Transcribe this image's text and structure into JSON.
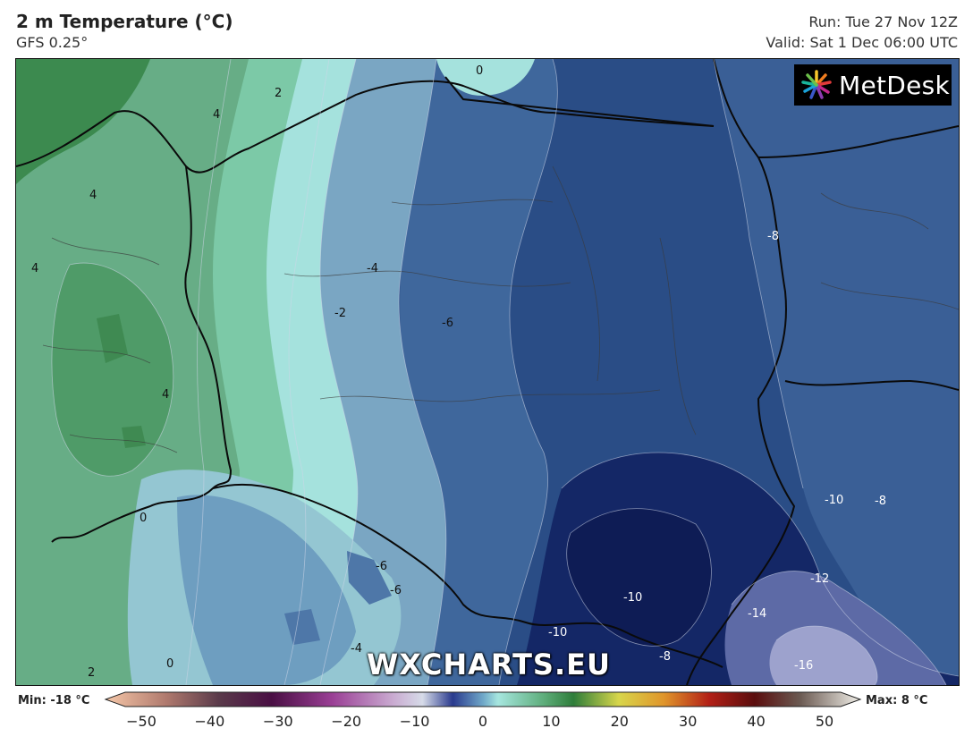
{
  "header": {
    "title": "2 m Temperature (°C)",
    "model": "GFS 0.25°",
    "run": "Run: Tue 27 Nov 12Z",
    "valid": "Valid: Sat 1 Dec 06:00 UTC"
  },
  "logo": {
    "text": "MetDesk",
    "icon": "metdesk-burst-icon"
  },
  "watermark": "WXCHARTS.EU",
  "colorbar": {
    "min_label": "Min: -18 °C",
    "max_label": "Max: 8 °C",
    "ticks": [
      "−50",
      "−40",
      "−30",
      "−20",
      "−10",
      "0",
      "10",
      "20",
      "30",
      "40",
      "50"
    ],
    "range": [
      -50,
      50
    ]
  },
  "contour_labels": [
    {
      "text": "0",
      "color": "dark"
    },
    {
      "text": "2",
      "color": "dark"
    },
    {
      "text": "4",
      "color": "dark"
    },
    {
      "text": "4",
      "color": "dark"
    },
    {
      "text": "4",
      "color": "dark"
    },
    {
      "text": "4",
      "color": "dark"
    },
    {
      "text": "-4",
      "color": "dark"
    },
    {
      "text": "-2",
      "color": "dark"
    },
    {
      "text": "-6",
      "color": "dark"
    },
    {
      "text": "-8",
      "color": "light"
    },
    {
      "text": "0",
      "color": "dark"
    },
    {
      "text": "-6",
      "color": "dark"
    },
    {
      "text": "-6",
      "color": "dark"
    },
    {
      "text": "-4",
      "color": "dark"
    },
    {
      "text": "2",
      "color": "dark"
    },
    {
      "text": "0",
      "color": "dark"
    },
    {
      "text": "-10",
      "color": "light"
    },
    {
      "text": "-8",
      "color": "light"
    },
    {
      "text": "-10",
      "color": "light"
    },
    {
      "text": "-12",
      "color": "light"
    },
    {
      "text": "-14",
      "color": "light"
    },
    {
      "text": "-10",
      "color": "light"
    },
    {
      "text": "-8",
      "color": "light"
    },
    {
      "text": "-16",
      "color": "light"
    }
  ],
  "colors": {
    "green_dark": "#3f8a52",
    "green_mid": "#6fb48a",
    "cyan": "#a6e6df",
    "blue_light": "#7fa9c4",
    "blue_mid": "#3d6a9c",
    "blue_deep": "#1c3577",
    "navy": "#0f1f5c",
    "lavender": "#8a8fbf"
  }
}
